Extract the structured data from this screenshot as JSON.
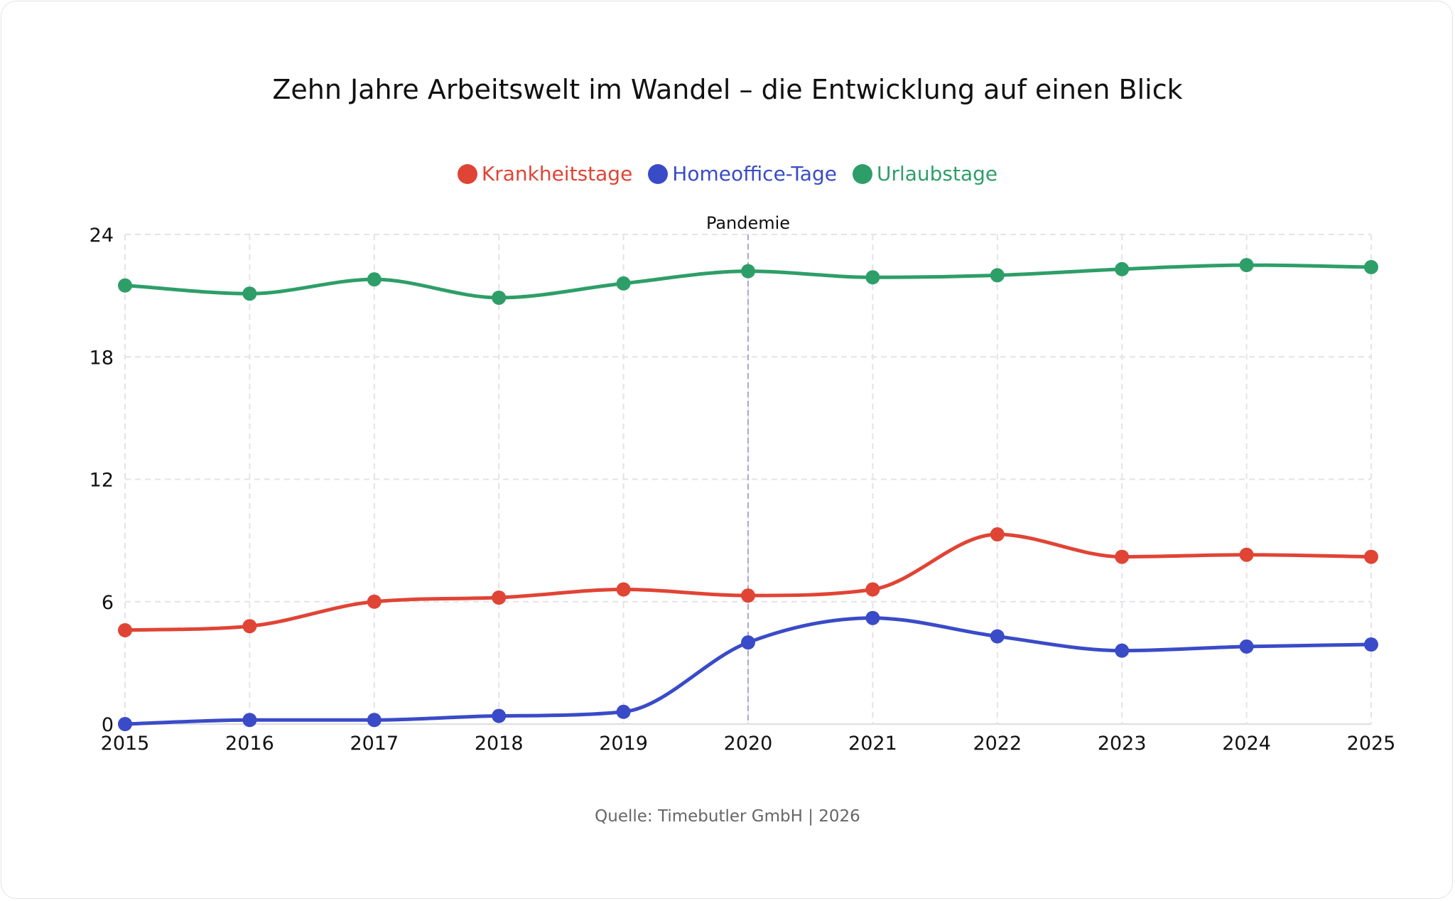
{
  "chart_data": {
    "type": "line",
    "title": "Zehn Jahre Arbeitswelt im Wandel – die Entwicklung auf einen Blick",
    "x": [
      2015,
      2016,
      2017,
      2018,
      2019,
      2020,
      2021,
      2022,
      2023,
      2024,
      2025
    ],
    "ylim": [
      0,
      24
    ],
    "yticks": [
      0,
      6,
      12,
      18,
      24
    ],
    "grid": true,
    "legend_placement": "top-center",
    "annotation": {
      "x": 2020,
      "label": "Pandemie"
    },
    "series": [
      {
        "name": "Krankheitstage",
        "color": "#e04435",
        "values": [
          4.6,
          4.8,
          6.0,
          6.2,
          6.6,
          6.3,
          6.6,
          9.3,
          8.2,
          8.3,
          8.2
        ]
      },
      {
        "name": "Homeoffice-Tage",
        "color": "#3a4bc8",
        "values": [
          0.0,
          0.2,
          0.2,
          0.4,
          0.6,
          4.0,
          5.2,
          4.3,
          3.6,
          3.8,
          3.9
        ]
      },
      {
        "name": "Urlaubstage",
        "color": "#2e9e68",
        "values": [
          21.5,
          21.1,
          21.8,
          20.9,
          21.6,
          22.2,
          21.9,
          22.0,
          22.3,
          22.5,
          22.4
        ]
      }
    ]
  },
  "source": "Quelle: Timebutler GmbH | 2026"
}
